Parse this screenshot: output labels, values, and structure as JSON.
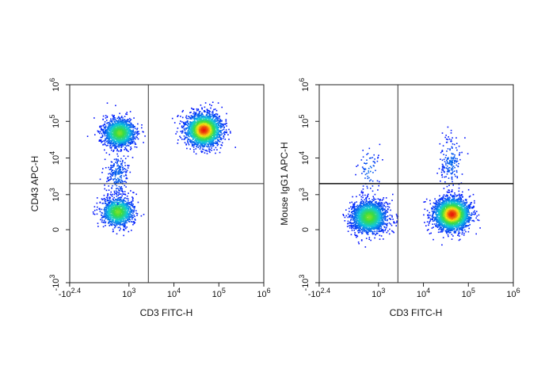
{
  "chart_data": [
    {
      "type": "scatter",
      "subtype": "flow-cytometry-density-dot-plot",
      "xlabel": "CD3 FITC-H",
      "ylabel": "CD43 APC-H",
      "x_scale": "biexponential",
      "y_scale": "biexponential",
      "xlim": [
        -250,
        1000000
      ],
      "ylim": [
        -1000,
        1000000
      ],
      "x_tick_labels": [
        "-10^2.4",
        "10^3",
        "10^4",
        "10^5",
        "10^6"
      ],
      "y_tick_labels": [
        "-10^3",
        "0",
        "10^3",
        "10^4",
        "10^5",
        "10^6"
      ],
      "gate": {
        "x": 2700,
        "y": 2000
      },
      "populations": [
        {
          "center": [
            600,
            50000
          ],
          "count": 1400,
          "peak_color": "#10c8d0"
        },
        {
          "center": [
            45000,
            60000
          ],
          "count": 2300,
          "peak_color": "#e81808"
        },
        {
          "center": [
            550,
            350
          ],
          "count": 1100,
          "peak_color": "#18c0d8"
        },
        {
          "center": [
            550,
            3500
          ],
          "count": 260,
          "peak_color": "#0010ff"
        }
      ],
      "grid": false,
      "legend": "none"
    },
    {
      "type": "scatter",
      "subtype": "flow-cytometry-density-dot-plot",
      "xlabel": "CD3 FITC-H",
      "ylabel": "Mouse IgG1 APC-H",
      "x_scale": "biexponential",
      "y_scale": "biexponential",
      "xlim": [
        -250,
        1000000
      ],
      "ylim": [
        -1000,
        1000000
      ],
      "x_tick_labels": [
        "-10^2.4",
        "10^3",
        "10^4",
        "10^5",
        "10^6"
      ],
      "y_tick_labels": [
        "-10^3",
        "0",
        "10^3",
        "10^4",
        "10^5",
        "10^6"
      ],
      "gate": {
        "x": 2700,
        "y": 2000
      },
      "populations": [
        {
          "center": [
            600,
            250
          ],
          "count": 1900,
          "peak_color": "#20d0c0"
        },
        {
          "center": [
            42000,
            300
          ],
          "count": 2600,
          "peak_color": "#e81808"
        },
        {
          "center": [
            40000,
            8000
          ],
          "count": 180,
          "peak_color": "#0010ff"
        },
        {
          "center": [
            600,
            5000
          ],
          "count": 70,
          "peak_color": "#0010ff"
        }
      ],
      "grid": false,
      "legend": "none"
    }
  ]
}
